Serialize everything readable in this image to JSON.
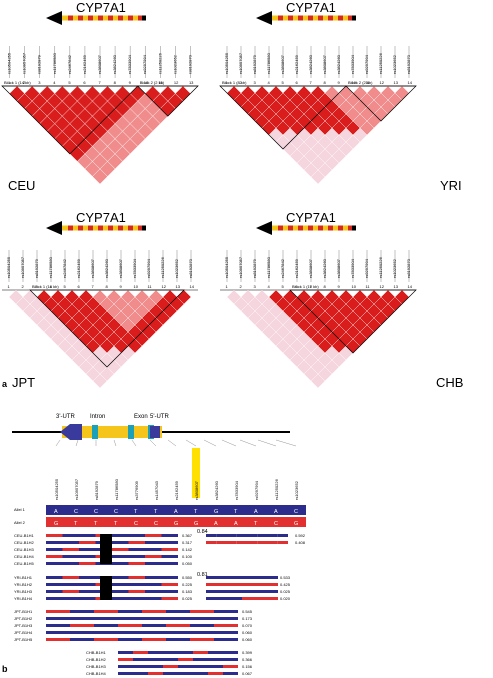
{
  "figure": {
    "panel_a": {
      "letter": "a",
      "gene": "CYP7A1",
      "blocks": {
        "CEU": [
          "Block 1 (14 kb)",
          "Block 2 (2 kb)"
        ],
        "YRI": [
          "Block 1 (8 kb)",
          "Block 2 (2 kb)"
        ],
        "JPT": [
          "Block 1 (16 kb)"
        ],
        "CHB": [
          "Block 1 (10 kb)"
        ]
      },
      "snps_ceu": [
        "rs10504255",
        "rs10957057",
        "rs8192879",
        "rs11786580",
        "rs2467842",
        "rs2162459",
        "rs3808607",
        "rs3824260",
        "rs7833904",
        "rs9297994",
        "rs11250226",
        "rs1023652",
        "rs8192870"
      ],
      "snps_yri": [
        "rs10504255",
        "rs10957057",
        "rs8192879",
        "rs11786580",
        "rs3808607",
        "rs2162459",
        "rs3824260",
        "rs3808607",
        "rs3824260",
        "rs7833904",
        "rs9297994",
        "rs11250226",
        "rs1023652",
        "rs8192870"
      ],
      "snps_jpt": [
        "rs10504255",
        "rs10957057",
        "rs8192879",
        "rs11786580",
        "rs2467842",
        "rs2162459",
        "rs3808607",
        "rs3824260",
        "rs3808607",
        "rs7833904",
        "rs9297994",
        "rs11250226",
        "rs1023652",
        "rs8192870"
      ],
      "snps_chb": [
        "rs10504255",
        "rs10957057",
        "rs8192879",
        "rs11786580",
        "rs2467842",
        "rs2162459",
        "rs3808607",
        "rs3824260",
        "rs3808607",
        "rs7833904",
        "rs9297994",
        "rs11250226",
        "rs1023652",
        "rs8192870"
      ],
      "populations": {
        "CEU": "CEU",
        "YRI": "YRI",
        "JPT": "JPT",
        "CHB": "CHB"
      }
    },
    "panel_b": {
      "letter": "b",
      "gene_labels": {
        "utr3": "3'-UTR",
        "intron": "Intron",
        "exon": "Exon",
        "utr5": "5'-UTR"
      },
      "snps": [
        "rs10504255",
        "rs10957057",
        "rs8192879",
        "rs11786580",
        "rs3776909",
        "rs1457043",
        "rs2162459",
        "rs3808607",
        "rs3824260",
        "rs7833904",
        "rs9297994",
        "rs11250226",
        "rs1023652"
      ],
      "allele1_label": "Allel 1",
      "allele2_label": "Allel 2",
      "allele1": [
        "A",
        "C",
        "C",
        "C",
        "T",
        "T",
        "A",
        "T",
        "G",
        "T",
        "A",
        "A",
        "C"
      ],
      "allele2": [
        "G",
        "T",
        "T",
        "T",
        "C",
        "C",
        "G",
        "G",
        "A",
        "A",
        "T",
        "C",
        "G"
      ],
      "haplotypes": {
        "CEU": [
          {
            "label": "CEU-B1H1",
            "freq": "0.367"
          },
          {
            "label": "CEU-B1H2",
            "freq": "0.317"
          },
          {
            "label": "CEU-B1H3",
            "freq": "0.142"
          },
          {
            "label": "CEU-B1H4",
            "freq": "0.100"
          },
          {
            "label": "CEU-B1H5",
            "freq": "0.050"
          }
        ],
        "CEU_b2": [
          {
            "label": "CEU-B2H1",
            "freq": "0.592"
          },
          {
            "label": "CEU-B2H2",
            "freq": "0.408"
          }
        ],
        "CEU_ld": "0.84",
        "YRI": [
          {
            "label": "YRI-B1H1",
            "freq": "0.550"
          },
          {
            "label": "YRI-B1H2",
            "freq": "0.225"
          },
          {
            "label": "YRI-B1H3",
            "freq": "0.183"
          },
          {
            "label": "YRI-B1H4",
            "freq": "0.025"
          }
        ],
        "YRI_b2": [
          {
            "label": "YRI-B2H1",
            "freq": "0.533"
          },
          {
            "label": "YRI-B2H2",
            "freq": "0.425"
          },
          {
            "label": "YRI-B2H3",
            "freq": "0.025"
          },
          {
            "label": "YRI-B2H4",
            "freq": "0.020"
          }
        ],
        "YRI_ld": "0.81",
        "JPT": [
          {
            "label": "JPT-B1H1",
            "freq": "0.545"
          },
          {
            "label": "JPT-B1H2",
            "freq": "0.173"
          },
          {
            "label": "JPT-B1H3",
            "freq": "0.070"
          },
          {
            "label": "JPT-B1H4",
            "freq": "0.060"
          },
          {
            "label": "JPT-B1H5",
            "freq": "0.060"
          }
        ],
        "CHB": [
          {
            "label": "CHB-B1H1",
            "freq": "0.399"
          },
          {
            "label": "CHB-B1H2",
            "freq": "0.366"
          },
          {
            "label": "CHB-B1H3",
            "freq": "0.156"
          },
          {
            "label": "CHB-B1H4",
            "freq": "0.067"
          }
        ]
      }
    },
    "colors": {
      "ld_red": "#d91c1c",
      "ld_light": "#f08c8c",
      "ld_pale": "#f5d5de",
      "hap_blue": "#2c2c8c",
      "hap_red": "#e23030",
      "gene_yellow": "#f6c51b",
      "gene_red": "#d42a1e"
    }
  }
}
